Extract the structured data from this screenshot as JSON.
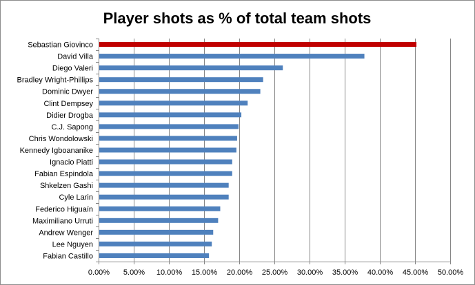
{
  "chart_data": {
    "type": "bar",
    "orientation": "horizontal",
    "title": "Player shots as % of total team shots",
    "xlabel": "",
    "ylabel": "",
    "categories": [
      "Sebastian Giovinco",
      "David Villa",
      "Diego Valeri",
      "Bradley Wright-Phillips",
      "Dominic Dwyer",
      "Clint Dempsey",
      "Didier Drogba",
      "C.J. Sapong",
      "Chris Wondolowski",
      "Kennedy Igboananike",
      "Ignacio Piatti",
      "Fabian Espindola",
      "Shkelzen Gashi",
      "Cyle Larin",
      "Federico Higuaín",
      "Maximiliano Urruti",
      "Andrew Wenger",
      "Lee Nguyen",
      "Fabian Castillo"
    ],
    "values": [
      45.2,
      37.8,
      26.2,
      23.4,
      23.0,
      21.2,
      20.3,
      19.9,
      19.7,
      19.6,
      19.0,
      19.0,
      18.5,
      18.5,
      17.3,
      17.0,
      16.3,
      16.1,
      15.7
    ],
    "xlim": [
      0,
      50
    ],
    "ticks": [
      "0.00%",
      "5.00%",
      "10.00%",
      "15.00%",
      "20.00%",
      "25.00%",
      "30.00%",
      "35.00%",
      "40.00%",
      "45.00%",
      "50.00%"
    ],
    "grid": true,
    "legend": "none",
    "highlight_index": 0,
    "colors": {
      "bar": "#4f81bd",
      "highlight": "#c00000",
      "grid": "#868686",
      "axis": "#868686"
    }
  }
}
